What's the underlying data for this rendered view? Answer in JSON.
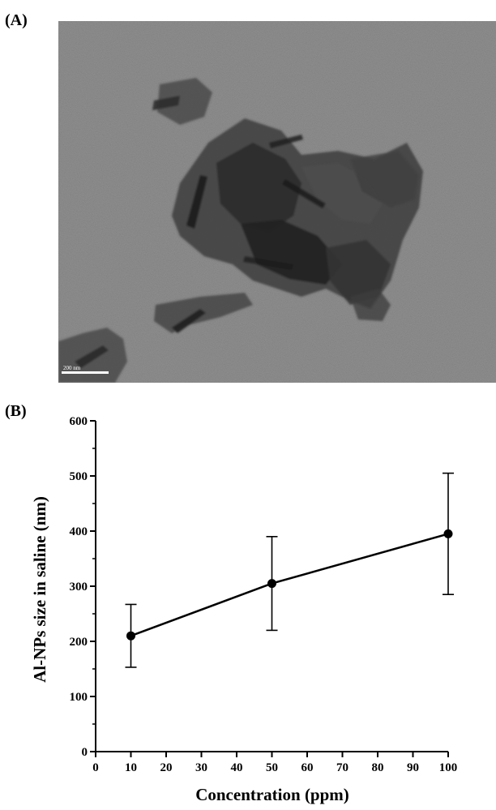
{
  "panels": {
    "a_label": "(A)",
    "b_label": "(B)"
  },
  "micrograph": {
    "scale_bar_text": "200 nm",
    "background_color": "#8e8e8e"
  },
  "chart_data": {
    "type": "line",
    "title": "",
    "xlabel": "Concentration (ppm)",
    "ylabel": "Al-NPs size in saline (nm)",
    "xlim": [
      0,
      100
    ],
    "ylim": [
      0,
      600
    ],
    "xticks": [
      0,
      10,
      20,
      30,
      40,
      50,
      60,
      70,
      80,
      90,
      100
    ],
    "yticks": [
      0,
      100,
      200,
      300,
      400,
      500,
      600
    ],
    "grid": false,
    "series": [
      {
        "x": [
          10,
          50,
          100
        ],
        "y": [
          210,
          305,
          395
        ],
        "error_low": [
          153,
          220,
          285
        ],
        "error_high": [
          267,
          390,
          505
        ],
        "marker": "circle",
        "color": "#000000"
      }
    ]
  }
}
